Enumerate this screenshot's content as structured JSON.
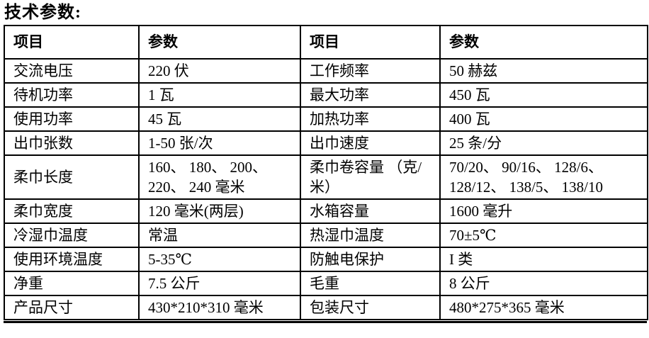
{
  "title": "技术参数:",
  "table": {
    "headers": [
      "项目",
      "参数",
      "项目",
      "参数"
    ],
    "rows": [
      [
        "交流电压",
        "220 伏",
        "工作频率",
        "50 赫兹"
      ],
      [
        "待机功率",
        "1 瓦",
        "最大功率",
        "450 瓦"
      ],
      [
        "使用功率",
        "45 瓦",
        "加热功率",
        "400 瓦"
      ],
      [
        "出巾张数",
        "1-50 张/次",
        "出巾速度",
        "25 条/分"
      ],
      [
        "柔巾长度",
        "160、 180、 200、 220、 240 毫米",
        "柔巾卷容量 （克/米）",
        "70/20、 90/16、 128/6、 128/12、 138/5、 138/10"
      ],
      [
        "柔巾宽度",
        "120 毫米(两层)",
        "水箱容量",
        "1600 毫升"
      ],
      [
        "冷湿巾温度",
        "常温",
        "热湿巾温度",
        "70±5℃"
      ],
      [
        "使用环境温度",
        "5-35℃",
        "防触电保护",
        "I 类"
      ],
      [
        "净重",
        "7.5 公斤",
        "毛重",
        "8 公斤"
      ],
      [
        "产品尺寸",
        "430*210*310 毫米",
        "包装尺寸",
        "480*275*365 毫米"
      ]
    ]
  },
  "colors": {
    "text": "#000000",
    "border": "#000000",
    "background": "#ffffff"
  }
}
